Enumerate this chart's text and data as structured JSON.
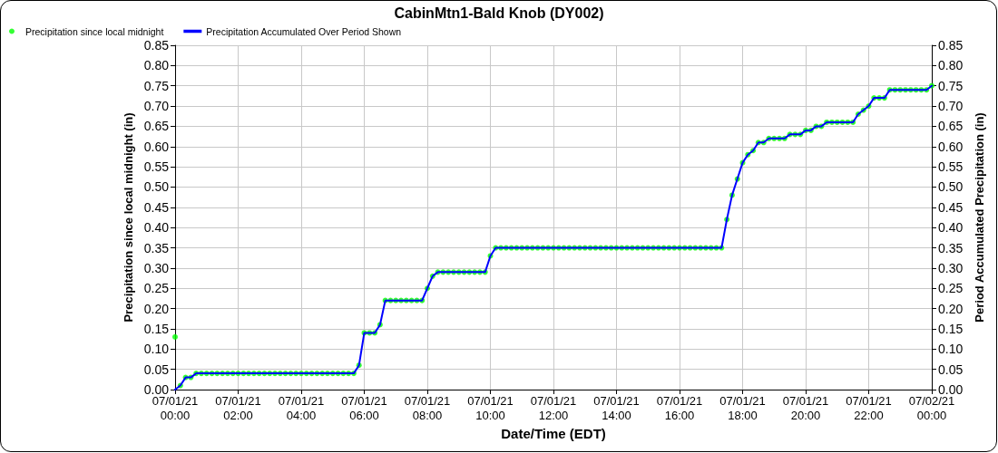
{
  "chart_data": {
    "type": "scatter",
    "title": "CabinMtn1-Bald Knob (DY002)",
    "xlabel": "Date/Time (EDT)",
    "ylabel": "Precipitation since local midnight (in)",
    "y2label": "Period Accumulated Precipitation (in)",
    "x": [
      "--07-01T00:00",
      "--07-01T00:10",
      "--07-01T00:20",
      "--07-01T00:30",
      "--07-01T00:40",
      "--07-01T00:50",
      "--07-01T01:00",
      "--07-01T01:10",
      "--07-01T01:20",
      "--07-01T01:30",
      "--07-01T01:40",
      "--07-01T01:50",
      "--07-01T02:00",
      "--07-01T02:10",
      "--07-01T02:20",
      "--07-01T02:30",
      "--07-01T02:40",
      "--07-01T02:50",
      "--07-01T03:00",
      "--07-01T03:10",
      "--07-01T03:20",
      "--07-01T03:30",
      "--07-01T03:40",
      "--07-01T03:50",
      "--07-01T04:00",
      "--07-01T04:10",
      "--07-01T04:20",
      "--07-01T04:30",
      "--07-01T04:40",
      "--07-01T04:50",
      "--07-01T05:00",
      "--07-01T05:10",
      "--07-01T05:20",
      "--07-01T05:30",
      "--07-01T05:40",
      "--07-01T05:50",
      "--07-01T06:00",
      "--07-01T06:10",
      "--07-01T06:20",
      "--07-01T06:30",
      "--07-01T06:40",
      "--07-01T06:50",
      "--07-01T07:00",
      "--07-01T07:10",
      "--07-01T07:20",
      "--07-01T07:30",
      "--07-01T07:40",
      "--07-01T07:50",
      "--07-01T08:00",
      "--07-01T08:10",
      "--07-01T08:20",
      "--07-01T08:30",
      "--07-01T08:40",
      "--07-01T08:50",
      "--07-01T09:00",
      "--07-01T09:10",
      "--07-01T09:20",
      "--07-01T09:30",
      "--07-01T09:40",
      "--07-01T09:50",
      "--07-01T10:00",
      "--07-01T10:10",
      "--07-01T10:20",
      "--07-01T10:30",
      "--07-01T10:40",
      "--07-01T10:50",
      "--07-01T11:00",
      "--07-01T11:10",
      "--07-01T11:20",
      "--07-01T11:30",
      "--07-01T11:40",
      "--07-01T11:50",
      "--07-01T12:00",
      "--07-01T12:10",
      "--07-01T12:20",
      "--07-01T12:30",
      "--07-01T12:40",
      "--07-01T12:50",
      "--07-01T13:00",
      "--07-01T13:10",
      "--07-01T13:20",
      "--07-01T13:30",
      "--07-01T13:40",
      "--07-01T13:50",
      "--07-01T14:00",
      "--07-01T14:10",
      "--07-01T14:20",
      "--07-01T14:30",
      "--07-01T14:40",
      "--07-01T14:50",
      "--07-01T15:00",
      "--07-01T15:10",
      "--07-01T15:20",
      "--07-01T15:30",
      "--07-01T15:40",
      "--07-01T15:50",
      "--07-01T16:00",
      "--07-01T16:10",
      "--07-01T16:20",
      "--07-01T16:30",
      "--07-01T16:40",
      "--07-01T16:50",
      "--07-01T17:00",
      "--07-01T17:10",
      "--07-01T17:20",
      "--07-01T17:30",
      "--07-01T17:40",
      "--07-01T17:50",
      "--07-01T18:00",
      "--07-01T18:10",
      "--07-01T18:20",
      "--07-01T18:30",
      "--07-01T18:40",
      "--07-01T18:50",
      "--07-01T19:00",
      "--07-01T19:10",
      "--07-01T19:20",
      "--07-01T19:30",
      "--07-01T19:40",
      "--07-01T19:50",
      "--07-01T20:00",
      "--07-01T20:10",
      "--07-01T20:20",
      "--07-01T20:30",
      "--07-01T20:40",
      "--07-01T20:50",
      "--07-01T21:00",
      "--07-01T21:10",
      "--07-01T21:20",
      "--07-01T21:30",
      "--07-01T21:40",
      "--07-01T21:50",
      "--07-01T22:00",
      "--07-01T22:10",
      "--07-01T22:20",
      "--07-01T22:30",
      "--07-01T22:40",
      "--07-01T22:50",
      "--07-01T23:00",
      "--07-01T23:10",
      "--07-01T23:20",
      "--07-01T23:30",
      "--07-01T23:40",
      "--07-01T23:50",
      "--07-02T00:00"
    ],
    "series": [
      {
        "name": "Precipitation since local midnight",
        "marker": "circle",
        "color": "#00ff00",
        "values": [
          0.13,
          0.01,
          0.03,
          0.03,
          0.04,
          0.04,
          0.04,
          0.04,
          0.04,
          0.04,
          0.04,
          0.04,
          0.04,
          0.04,
          0.04,
          0.04,
          0.04,
          0.04,
          0.04,
          0.04,
          0.04,
          0.04,
          0.04,
          0.04,
          0.04,
          0.04,
          0.04,
          0.04,
          0.04,
          0.04,
          0.04,
          0.04,
          0.04,
          0.04,
          0.04,
          0.06,
          0.14,
          0.14,
          0.14,
          0.16,
          0.22,
          0.22,
          0.22,
          0.22,
          0.22,
          0.22,
          0.22,
          0.22,
          0.25,
          0.28,
          0.29,
          0.29,
          0.29,
          0.29,
          0.29,
          0.29,
          0.29,
          0.29,
          0.29,
          0.29,
          0.33,
          0.35,
          0.35,
          0.35,
          0.35,
          0.35,
          0.35,
          0.35,
          0.35,
          0.35,
          0.35,
          0.35,
          0.35,
          0.35,
          0.35,
          0.35,
          0.35,
          0.35,
          0.35,
          0.35,
          0.35,
          0.35,
          0.35,
          0.35,
          0.35,
          0.35,
          0.35,
          0.35,
          0.35,
          0.35,
          0.35,
          0.35,
          0.35,
          0.35,
          0.35,
          0.35,
          0.35,
          0.35,
          0.35,
          0.35,
          0.35,
          0.35,
          0.35,
          0.35,
          0.35,
          0.42,
          0.48,
          0.52,
          0.56,
          0.58,
          0.59,
          0.61,
          0.61,
          0.62,
          0.62,
          0.62,
          0.62,
          0.63,
          0.63,
          0.63,
          0.64,
          0.64,
          0.65,
          0.65,
          0.66,
          0.66,
          0.66,
          0.66,
          0.66,
          0.66,
          0.68,
          0.69,
          0.7,
          0.72,
          0.72,
          0.72,
          0.74,
          0.74,
          0.74,
          0.74,
          0.74,
          0.74,
          0.74,
          0.74,
          0.75
        ]
      },
      {
        "name": "Precipitation Accumulated Over Period Shown",
        "type": "line",
        "marker": "none",
        "axis": "y2",
        "color": "#0000ff",
        "values": [
          0,
          0.01,
          0.03,
          0.03,
          0.04,
          0.04,
          0.04,
          0.04,
          0.04,
          0.04,
          0.04,
          0.04,
          0.04,
          0.04,
          0.04,
          0.04,
          0.04,
          0.04,
          0.04,
          0.04,
          0.04,
          0.04,
          0.04,
          0.04,
          0.04,
          0.04,
          0.04,
          0.04,
          0.04,
          0.04,
          0.04,
          0.04,
          0.04,
          0.04,
          0.04,
          0.06,
          0.14,
          0.14,
          0.14,
          0.16,
          0.22,
          0.22,
          0.22,
          0.22,
          0.22,
          0.22,
          0.22,
          0.22,
          0.25,
          0.28,
          0.29,
          0.29,
          0.29,
          0.29,
          0.29,
          0.29,
          0.29,
          0.29,
          0.29,
          0.29,
          0.33,
          0.35,
          0.35,
          0.35,
          0.35,
          0.35,
          0.35,
          0.35,
          0.35,
          0.35,
          0.35,
          0.35,
          0.35,
          0.35,
          0.35,
          0.35,
          0.35,
          0.35,
          0.35,
          0.35,
          0.35,
          0.35,
          0.35,
          0.35,
          0.35,
          0.35,
          0.35,
          0.35,
          0.35,
          0.35,
          0.35,
          0.35,
          0.35,
          0.35,
          0.35,
          0.35,
          0.35,
          0.35,
          0.35,
          0.35,
          0.35,
          0.35,
          0.35,
          0.35,
          0.35,
          0.42,
          0.48,
          0.52,
          0.56,
          0.58,
          0.59,
          0.61,
          0.61,
          0.62,
          0.62,
          0.62,
          0.62,
          0.63,
          0.63,
          0.63,
          0.64,
          0.64,
          0.65,
          0.65,
          0.66,
          0.66,
          0.66,
          0.66,
          0.66,
          0.66,
          0.68,
          0.69,
          0.7,
          0.72,
          0.72,
          0.72,
          0.74,
          0.74,
          0.74,
          0.74,
          0.74,
          0.74,
          0.74,
          0.74,
          0.75
        ]
      }
    ],
    "xlim": [
      "--07-01T00:00",
      "--07-02T00:00"
    ],
    "xticks": [
      {
        "value": "--07-01T00:00",
        "label": "07/01/21 00:00"
      },
      {
        "value": "--07-01T02:00",
        "label": "07/01/21 02:00"
      },
      {
        "value": "--07-01T04:00",
        "label": "07/01/21 04:00"
      },
      {
        "value": "--07-01T06:00",
        "label": "07/01/21 06:00"
      },
      {
        "value": "--07-01T08:00",
        "label": "07/01/21 08:00"
      },
      {
        "value": "--07-01T10:00",
        "label": "07/01/21 10:00"
      },
      {
        "value": "--07-01T12:00",
        "label": "07/01/21 12:00"
      },
      {
        "value": "--07-01T14:00",
        "label": "07/01/21 14:00"
      },
      {
        "value": "--07-01T16:00",
        "label": "07/01/21 16:00"
      },
      {
        "value": "--07-01T18:00",
        "label": "07/01/21 18:00"
      },
      {
        "value": "--07-01T20:00",
        "label": "07/01/21 20:00"
      },
      {
        "value": "--07-01T22:00",
        "label": "07/01/21 22:00"
      },
      {
        "value": "--07-02T00:00",
        "label": "07/02/21 00:00"
      }
    ],
    "ylim": [
      0,
      0.85
    ],
    "yticks": [
      {
        "value": 0,
        "label": "0.00"
      },
      {
        "value": 0.05,
        "label": "0.05"
      },
      {
        "value": 0.1,
        "label": "0.10"
      },
      {
        "value": 0.15,
        "label": "0.15"
      },
      {
        "value": 0.2,
        "label": "0.20"
      },
      {
        "value": 0.25,
        "label": "0.25"
      },
      {
        "value": 0.3,
        "label": "0.30"
      },
      {
        "value": 0.35,
        "label": "0.35"
      },
      {
        "value": 0.4,
        "label": "0.40"
      },
      {
        "value": 0.45,
        "label": "0.45"
      },
      {
        "value": 0.5,
        "label": "0.50"
      },
      {
        "value": 0.55,
        "label": "0.55"
      },
      {
        "value": 0.6,
        "label": "0.60"
      },
      {
        "value": 0.65,
        "label": "0.65"
      },
      {
        "value": 0.7,
        "label": "0.70"
      },
      {
        "value": 0.75,
        "label": "0.75"
      },
      {
        "value": 0.8,
        "label": "0.80"
      },
      {
        "value": 0.85,
        "label": "0.85"
      }
    ],
    "y2lim": [
      0,
      0.85
    ],
    "y2ticks": [
      {
        "value": 0,
        "label": "0.00"
      },
      {
        "value": 0.05,
        "label": "0.05"
      },
      {
        "value": 0.1,
        "label": "0.10"
      },
      {
        "value": 0.15,
        "label": "0.15"
      },
      {
        "value": 0.2,
        "label": "0.20"
      },
      {
        "value": 0.25,
        "label": "0.25"
      },
      {
        "value": 0.3,
        "label": "0.30"
      },
      {
        "value": 0.35,
        "label": "0.35"
      },
      {
        "value": 0.4,
        "label": "0.40"
      },
      {
        "value": 0.45,
        "label": "0.45"
      },
      {
        "value": 0.5,
        "label": "0.50"
      },
      {
        "value": 0.55,
        "label": "0.55"
      },
      {
        "value": 0.6,
        "label": "0.60"
      },
      {
        "value": 0.65,
        "label": "0.65"
      },
      {
        "value": 0.7,
        "label": "0.70"
      },
      {
        "value": 0.75,
        "label": "0.75"
      },
      {
        "value": 0.8,
        "label": "0.80"
      },
      {
        "value": 0.85,
        "label": "0.85"
      }
    ],
    "grid": true,
    "legend": "top left"
  }
}
